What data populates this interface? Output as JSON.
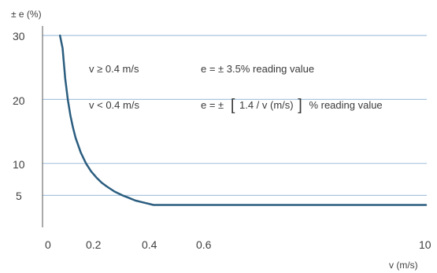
{
  "chart_data": {
    "type": "line",
    "title": "",
    "ylabel": "± e (%)",
    "xlabel": "v (m/s)",
    "x_ticks": [
      "0",
      "0.2",
      "0.4",
      "0.6",
      "10"
    ],
    "y_ticks": [
      "30",
      "20",
      "10",
      "5"
    ],
    "ylim": [
      0,
      30
    ],
    "gridlines_y": [
      5,
      10,
      20,
      30
    ],
    "grid": "horizontal",
    "series": [
      {
        "points": [
          [
            0.04,
            30
          ],
          [
            0.05,
            28
          ],
          [
            0.06,
            23.3
          ],
          [
            0.07,
            20
          ],
          [
            0.08,
            17.5
          ],
          [
            0.09,
            15.6
          ],
          [
            0.1,
            14
          ],
          [
            0.12,
            11.7
          ],
          [
            0.14,
            10
          ],
          [
            0.16,
            8.75
          ],
          [
            0.18,
            7.8
          ],
          [
            0.2,
            7
          ],
          [
            0.22,
            6.4
          ],
          [
            0.25,
            5.6
          ],
          [
            0.28,
            5
          ],
          [
            0.3,
            4.7
          ],
          [
            0.33,
            4.2
          ],
          [
            0.36,
            3.9
          ],
          [
            0.4,
            3.5
          ],
          [
            10,
            3.5
          ]
        ]
      }
    ],
    "annotations": [
      {
        "condition": "v ≥ 0.4 m/s",
        "formula": "e = ± 3.5% reading value"
      },
      {
        "condition": "v < 0.4 m/s",
        "formula_prefix": "e = ±",
        "bracket_open": "[",
        "formula_inner": "1.4 / v (m/s)",
        "bracket_close": "]",
        "formula_suffix": "% reading value"
      }
    ],
    "colors": {
      "line": "#2b5d7f",
      "grid": "#a9c6df",
      "axis": "#555555"
    }
  }
}
